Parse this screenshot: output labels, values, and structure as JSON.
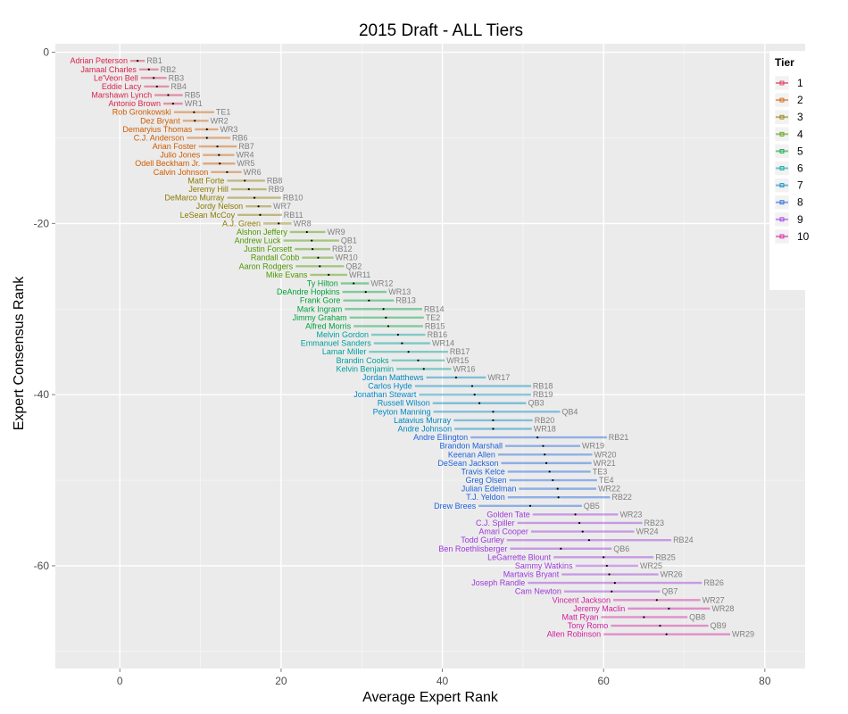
{
  "chart_data": {
    "type": "scatter",
    "title": "2015 Draft - ALL Tiers",
    "xlabel": "Average Expert Rank",
    "ylabel": "Expert Consensus Rank",
    "xlim": [
      -8,
      85
    ],
    "ylim": [
      -72,
      1
    ],
    "xticks": [
      0,
      20,
      40,
      60,
      80
    ],
    "yticks": [
      0,
      -20,
      -40,
      -60
    ],
    "grid": true,
    "legend": {
      "title": "Tier",
      "placement": "right-top",
      "entries": [
        "1",
        "2",
        "3",
        "4",
        "5",
        "6",
        "7",
        "8",
        "9",
        "10"
      ]
    },
    "tier_colors": {
      "1": "#d8254d",
      "2": "#cf5c00",
      "3": "#8c7a00",
      "4": "#4f9a00",
      "5": "#00a23b",
      "6": "#00a09a",
      "7": "#0088c4",
      "8": "#1d63dd",
      "9": "#9c38dc",
      "10": "#d21ea0"
    },
    "players": [
      {
        "name": "Adrian Peterson",
        "pos": "RB1",
        "rank": 1,
        "avg": 2.2,
        "lo": 1.3,
        "hi": 3.1,
        "tier": 1
      },
      {
        "name": "Jamaal Charles",
        "pos": "RB2",
        "rank": 2,
        "avg": 3.6,
        "lo": 2.4,
        "hi": 4.8,
        "tier": 1
      },
      {
        "name": "Le'Veon Bell",
        "pos": "RB3",
        "rank": 3,
        "avg": 4.2,
        "lo": 2.6,
        "hi": 5.8,
        "tier": 1
      },
      {
        "name": "Eddie Lacy",
        "pos": "RB4",
        "rank": 4,
        "avg": 4.6,
        "lo": 3.0,
        "hi": 6.1,
        "tier": 1
      },
      {
        "name": "Marshawn Lynch",
        "pos": "RB5",
        "rank": 5,
        "avg": 6.0,
        "lo": 4.3,
        "hi": 7.8,
        "tier": 1
      },
      {
        "name": "Antonio Brown",
        "pos": "WR1",
        "rank": 6,
        "avg": 6.6,
        "lo": 5.4,
        "hi": 7.8,
        "tier": 1
      },
      {
        "name": "Rob Gronkowski",
        "pos": "TE1",
        "rank": 7,
        "avg": 9.2,
        "lo": 6.7,
        "hi": 11.7,
        "tier": 2
      },
      {
        "name": "Dez Bryant",
        "pos": "WR2",
        "rank": 8,
        "avg": 9.3,
        "lo": 7.8,
        "hi": 11.0,
        "tier": 2
      },
      {
        "name": "Demaryius Thomas",
        "pos": "WR3",
        "rank": 9,
        "avg": 10.8,
        "lo": 9.3,
        "hi": 12.2,
        "tier": 2
      },
      {
        "name": "C.J. Anderson",
        "pos": "RB6",
        "rank": 10,
        "avg": 10.8,
        "lo": 8.3,
        "hi": 13.7,
        "tier": 2
      },
      {
        "name": "Arian Foster",
        "pos": "RB7",
        "rank": 11,
        "avg": 12.1,
        "lo": 9.8,
        "hi": 14.5,
        "tier": 2
      },
      {
        "name": "Julio Jones",
        "pos": "WR4",
        "rank": 12,
        "avg": 12.3,
        "lo": 10.3,
        "hi": 14.2,
        "tier": 2
      },
      {
        "name": "Odell Beckham Jr.",
        "pos": "WR5",
        "rank": 13,
        "avg": 12.4,
        "lo": 10.3,
        "hi": 14.3,
        "tier": 2
      },
      {
        "name": "Calvin Johnson",
        "pos": "WR6",
        "rank": 14,
        "avg": 13.3,
        "lo": 11.3,
        "hi": 15.1,
        "tier": 2
      },
      {
        "name": "Matt Forte",
        "pos": "RB8",
        "rank": 15,
        "avg": 15.5,
        "lo": 13.3,
        "hi": 18.0,
        "tier": 3
      },
      {
        "name": "Jeremy Hill",
        "pos": "RB9",
        "rank": 16,
        "avg": 16.0,
        "lo": 13.8,
        "hi": 18.2,
        "tier": 3
      },
      {
        "name": "DeMarco Murray",
        "pos": "RB10",
        "rank": 17,
        "avg": 16.7,
        "lo": 13.3,
        "hi": 20.0,
        "tier": 3
      },
      {
        "name": "Jordy Nelson",
        "pos": "WR7",
        "rank": 18,
        "avg": 17.2,
        "lo": 15.6,
        "hi": 18.8,
        "tier": 3
      },
      {
        "name": "LeSean McCoy",
        "pos": "RB11",
        "rank": 19,
        "avg": 17.4,
        "lo": 14.6,
        "hi": 20.1,
        "tier": 3
      },
      {
        "name": "A.J. Green",
        "pos": "WR8",
        "rank": 20,
        "avg": 19.7,
        "lo": 17.8,
        "hi": 21.3,
        "tier": 3
      },
      {
        "name": "Alshon Jeffery",
        "pos": "WR9",
        "rank": 21,
        "avg": 23.2,
        "lo": 21.1,
        "hi": 25.5,
        "tier": 4
      },
      {
        "name": "Andrew Luck",
        "pos": "QB1",
        "rank": 22,
        "avg": 23.8,
        "lo": 20.3,
        "hi": 27.2,
        "tier": 4
      },
      {
        "name": "Justin Forsett",
        "pos": "RB12",
        "rank": 23,
        "avg": 23.9,
        "lo": 21.7,
        "hi": 26.1,
        "tier": 4
      },
      {
        "name": "Randall Cobb",
        "pos": "WR10",
        "rank": 24,
        "avg": 24.6,
        "lo": 22.6,
        "hi": 26.5,
        "tier": 4
      },
      {
        "name": "Aaron Rodgers",
        "pos": "QB2",
        "rank": 25,
        "avg": 24.8,
        "lo": 21.8,
        "hi": 27.8,
        "tier": 4
      },
      {
        "name": "Mike Evans",
        "pos": "WR11",
        "rank": 26,
        "avg": 25.9,
        "lo": 23.6,
        "hi": 28.2,
        "tier": 4
      },
      {
        "name": "Ty Hilton",
        "pos": "WR12",
        "rank": 27,
        "avg": 29.0,
        "lo": 27.4,
        "hi": 30.9,
        "tier": 5
      },
      {
        "name": "DeAndre Hopkins",
        "pos": "WR13",
        "rank": 28,
        "avg": 30.5,
        "lo": 27.6,
        "hi": 33.1,
        "tier": 5
      },
      {
        "name": "Frank Gore",
        "pos": "RB13",
        "rank": 29,
        "avg": 30.9,
        "lo": 27.7,
        "hi": 34.0,
        "tier": 5
      },
      {
        "name": "Mark Ingram",
        "pos": "RB14",
        "rank": 30,
        "avg": 32.7,
        "lo": 27.9,
        "hi": 37.5,
        "tier": 5
      },
      {
        "name": "Jimmy Graham",
        "pos": "TE2",
        "rank": 31,
        "avg": 33.0,
        "lo": 28.5,
        "hi": 37.7,
        "tier": 5
      },
      {
        "name": "Alfred Morris",
        "pos": "RB15",
        "rank": 32,
        "avg": 33.3,
        "lo": 29.0,
        "hi": 37.6,
        "tier": 5
      },
      {
        "name": "Melvin Gordon",
        "pos": "RB16",
        "rank": 33,
        "avg": 34.5,
        "lo": 31.2,
        "hi": 37.9,
        "tier": 6
      },
      {
        "name": "Emmanuel Sanders",
        "pos": "WR14",
        "rank": 34,
        "avg": 35.0,
        "lo": 31.5,
        "hi": 38.5,
        "tier": 6
      },
      {
        "name": "Lamar Miller",
        "pos": "RB17",
        "rank": 35,
        "avg": 35.8,
        "lo": 30.9,
        "hi": 40.7,
        "tier": 6
      },
      {
        "name": "Brandin Cooks",
        "pos": "WR15",
        "rank": 36,
        "avg": 37.0,
        "lo": 33.7,
        "hi": 40.3,
        "tier": 6
      },
      {
        "name": "Kelvin Benjamin",
        "pos": "WR16",
        "rank": 37,
        "avg": 37.7,
        "lo": 34.3,
        "hi": 41.1,
        "tier": 6
      },
      {
        "name": "Jordan Matthews",
        "pos": "WR17",
        "rank": 38,
        "avg": 41.7,
        "lo": 38.0,
        "hi": 45.4,
        "tier": 7
      },
      {
        "name": "Carlos Hyde",
        "pos": "RB18",
        "rank": 39,
        "avg": 43.7,
        "lo": 36.6,
        "hi": 51.0,
        "tier": 7
      },
      {
        "name": "Jonathan Stewart",
        "pos": "RB19",
        "rank": 40,
        "avg": 44.0,
        "lo": 37.1,
        "hi": 51.0,
        "tier": 7
      },
      {
        "name": "Russell Wilson",
        "pos": "QB3",
        "rank": 41,
        "avg": 44.6,
        "lo": 38.8,
        "hi": 50.4,
        "tier": 7
      },
      {
        "name": "Peyton Manning",
        "pos": "QB4",
        "rank": 42,
        "avg": 46.3,
        "lo": 38.9,
        "hi": 54.6,
        "tier": 7
      },
      {
        "name": "Latavius Murray",
        "pos": "RB20",
        "rank": 43,
        "avg": 46.3,
        "lo": 41.4,
        "hi": 51.2,
        "tier": 7
      },
      {
        "name": "Andre Johnson",
        "pos": "WR18",
        "rank": 44,
        "avg": 46.3,
        "lo": 41.5,
        "hi": 51.1,
        "tier": 7
      },
      {
        "name": "Andre Ellington",
        "pos": "RB21",
        "rank": 45,
        "avg": 51.8,
        "lo": 43.5,
        "hi": 60.4,
        "tier": 8
      },
      {
        "name": "Brandon Marshall",
        "pos": "WR19",
        "rank": 46,
        "avg": 52.5,
        "lo": 47.8,
        "hi": 57.1,
        "tier": 8
      },
      {
        "name": "Keenan Allen",
        "pos": "WR20",
        "rank": 47,
        "avg": 52.7,
        "lo": 46.9,
        "hi": 58.6,
        "tier": 8
      },
      {
        "name": "DeSean Jackson",
        "pos": "WR21",
        "rank": 48,
        "avg": 52.9,
        "lo": 47.3,
        "hi": 58.5,
        "tier": 8
      },
      {
        "name": "Travis Kelce",
        "pos": "TE3",
        "rank": 49,
        "avg": 53.3,
        "lo": 48.1,
        "hi": 58.4,
        "tier": 8
      },
      {
        "name": "Greg Olsen",
        "pos": "TE4",
        "rank": 50,
        "avg": 53.7,
        "lo": 48.3,
        "hi": 59.2,
        "tier": 8
      },
      {
        "name": "Julian Edelman",
        "pos": "WR22",
        "rank": 51,
        "avg": 54.3,
        "lo": 49.5,
        "hi": 59.1,
        "tier": 8
      },
      {
        "name": "T.J. Yeldon",
        "pos": "RB22",
        "rank": 52,
        "avg": 54.4,
        "lo": 48.1,
        "hi": 60.8,
        "tier": 8
      },
      {
        "name": "Drew Brees",
        "pos": "QB5",
        "rank": 53,
        "avg": 50.9,
        "lo": 44.5,
        "hi": 57.3,
        "tier": 8
      },
      {
        "name": "Golden Tate",
        "pos": "WR23",
        "rank": 54,
        "avg": 56.5,
        "lo": 51.2,
        "hi": 61.8,
        "tier": 9
      },
      {
        "name": "C.J. Spiller",
        "pos": "RB23",
        "rank": 55,
        "avg": 57.0,
        "lo": 49.3,
        "hi": 64.8,
        "tier": 9
      },
      {
        "name": "Amari Cooper",
        "pos": "WR24",
        "rank": 56,
        "avg": 57.4,
        "lo": 51.0,
        "hi": 63.8,
        "tier": 9
      },
      {
        "name": "Todd Gurley",
        "pos": "RB24",
        "rank": 57,
        "avg": 58.2,
        "lo": 48.0,
        "hi": 68.4,
        "tier": 9
      },
      {
        "name": "Ben Roethlisberger",
        "pos": "QB6",
        "rank": 58,
        "avg": 54.7,
        "lo": 48.4,
        "hi": 61.0,
        "tier": 9
      },
      {
        "name": "LeGarrette Blount",
        "pos": "RB25",
        "rank": 59,
        "avg": 60.0,
        "lo": 53.8,
        "hi": 66.2,
        "tier": 9
      },
      {
        "name": "Sammy Watkins",
        "pos": "WR25",
        "rank": 60,
        "avg": 60.4,
        "lo": 56.5,
        "hi": 64.3,
        "tier": 9
      },
      {
        "name": "Martavis Bryant",
        "pos": "WR26",
        "rank": 61,
        "avg": 60.7,
        "lo": 54.8,
        "hi": 66.8,
        "tier": 9
      },
      {
        "name": "Joseph Randle",
        "pos": "RB26",
        "rank": 62,
        "avg": 61.4,
        "lo": 50.6,
        "hi": 72.2,
        "tier": 9
      },
      {
        "name": "Cam Newton",
        "pos": "QB7",
        "rank": 63,
        "avg": 61.0,
        "lo": 55.1,
        "hi": 67.0,
        "tier": 9
      },
      {
        "name": "Vincent Jackson",
        "pos": "WR27",
        "rank": 64,
        "avg": 66.6,
        "lo": 61.2,
        "hi": 72.0,
        "tier": 10
      },
      {
        "name": "Jeremy Maclin",
        "pos": "WR28",
        "rank": 65,
        "avg": 68.1,
        "lo": 63.0,
        "hi": 73.2,
        "tier": 10
      },
      {
        "name": "Matt Ryan",
        "pos": "QB8",
        "rank": 66,
        "avg": 65.0,
        "lo": 59.7,
        "hi": 70.4,
        "tier": 10
      },
      {
        "name": "Tony Romo",
        "pos": "QB9",
        "rank": 67,
        "avg": 67.0,
        "lo": 60.9,
        "hi": 73.0,
        "tier": 10
      },
      {
        "name": "Allen Robinson",
        "pos": "WR29",
        "rank": 68,
        "avg": 67.8,
        "lo": 60.0,
        "hi": 75.7,
        "tier": 10
      }
    ]
  }
}
